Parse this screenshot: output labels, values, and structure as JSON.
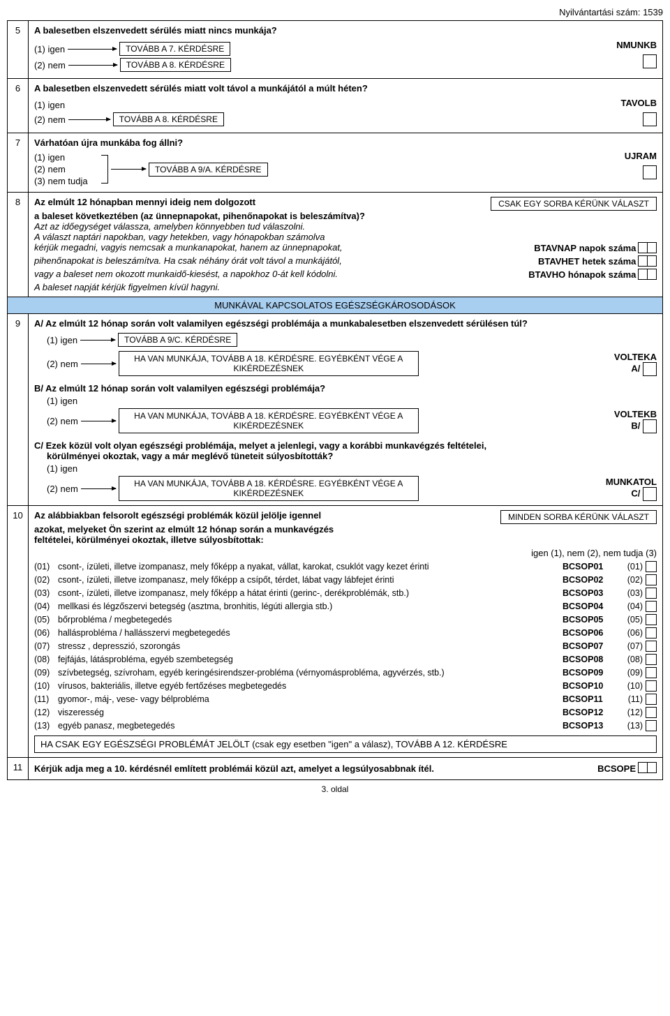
{
  "reg": "Nyilvántartási szám: 1539",
  "q5": {
    "num": "5",
    "title": "A balesetben elszenvedett sérülés miatt nincs munkája?",
    "opt1": "(1) igen",
    "opt2": "(2) nem",
    "skip1": "TOVÁBB A 7. KÉRDÉSRE",
    "skip2": "TOVÁBB A 8. KÉRDÉSRE",
    "code": "NMUNKB"
  },
  "q6": {
    "num": "6",
    "title": "A balesetben elszenvedett sérülés miatt volt távol a munkájától a múlt héten?",
    "opt1": "(1) igen",
    "opt2": "(2) nem",
    "skip2": "TOVÁBB A 8. KÉRDÉSRE",
    "code": "TAVOLB"
  },
  "q7": {
    "num": "7",
    "title": "Várhatóan újra munkába fog állni?",
    "opt1": "(1) igen",
    "opt2": "(2) nem",
    "opt3": "(3) nem tudja",
    "skip": "TOVÁBB A 9/A. KÉRDÉSRE",
    "code": "UJRAM"
  },
  "q8": {
    "num": "8",
    "l1": "Az elmúlt 12 hónapban mennyi ideig nem dolgozott",
    "notice": "CSAK EGY SORBA KÉRÜNK VÁLASZT",
    "l2": "a baleset következtében (az ünnepnapokat, pihenőnapokat is beleszámítva)?",
    "l3": "Azt az időegységet válassza, amelyben könnyebben tud válaszolni.",
    "l4": "A választ naptári napokban, vagy hetekben, vagy hónapokban számolva",
    "l5": "kérjük megadni, vagyis nemcsak a munkanapokat, hanem az ünnepnapokat,",
    "l6": "pihenőnapokat is beleszámítva.  Ha csak néhány órát  volt távol a munkájától,",
    "l7": " vagy a baleset nem okozott munkaidő-kiesést,  a napokhoz 0-át kell kódolni.",
    "l8": "A baleset napját kérjük figyelmen kívül hagyni.",
    "c1": "BTAVNAP",
    "u1": "napok száma",
    "c2": "BTAVHET",
    "u2": "hetek száma",
    "c3": "BTAVHO",
    "u3": "hónapok száma"
  },
  "band": "MUNKÁVAL KAPCSOLATOS EGÉSZSÉGKÁROSODÁSOK",
  "q9": {
    "num": "9",
    "a_prefix": "A/",
    "a_title": "Az elmúlt 12 hónap során volt valamilyen egészségi problémája a munkabalesetben elszenvedett sérülésen túl?",
    "opt1": "(1)  igen",
    "opt2": "(2)  nem",
    "skip1": "TOVÁBB A 9/C. KÉRDÉSRE",
    "skip2": "HA VAN MUNKÁJA, TOVÁBB A 18. KÉRDÉSRE. EGYÉBKÉNT VÉGE A KIKÉRDEZÉSNEK",
    "a_code": "VOLTEKA",
    "a_sub": "A/",
    "b_prefix": "B/",
    "b_title": "Az elmúlt 12 hónap során volt valamilyen egészségi problémája?",
    "b_code": "VOLTEKB",
    "b_sub": "B/",
    "c_prefix": "C/",
    "c_title_l1": "Ezek közül volt olyan egészségi problémája, melyet a jelenlegi, vagy a korábbi munkavégzés feltételei,",
    "c_title_l2": "körülményei okoztak, vagy a már meglévő tüneteit súlyosbították?",
    "c_code": "MUNKATOL",
    "c_sub": "C/"
  },
  "q10": {
    "num": "10",
    "l1": "Az alábbiakban felsorolt egészségi problémák közül jelölje igennel",
    "notice": "MINDEN SORBA KÉRÜNK VÁLASZT",
    "l2": "azokat, melyeket Ön szerint az elmúlt 12 hónap során a munkavégzés",
    "l3": "feltételei, körülményei okoztak, illetve súlyosbítottak:",
    "legend": "igen (1), nem (2), nem tudja (3)",
    "items": [
      {
        "n": "(01)",
        "t": "csont-, ízületi, illetve izompanasz, mely főképp a nyakat, vállat, karokat, csuklót vagy kezet érinti",
        "c": "BCSOP01",
        "r": "(01)"
      },
      {
        "n": "(02)",
        "t": "csont-, ízületi, illetve izompanasz, mely főképp a csípőt, térdet, lábat vagy lábfejet érinti",
        "c": "BCSOP02",
        "r": "(02)"
      },
      {
        "n": "(03)",
        "t": "csont-, ízületi, illetve izompanasz, mely főképp a hátat érinti (gerinc-, derékproblémák, stb.)",
        "c": "BCSOP03",
        "r": "(03)"
      },
      {
        "n": "(04)",
        "t": "mellkasi és légzőszervi betegség (asztma, bronhitis, légúti allergia stb.)",
        "c": "BCSOP04",
        "r": "(04)"
      },
      {
        "n": "(05)",
        "t": "bőrprobléma / megbetegedés",
        "c": "BCSOP05",
        "r": "(05)"
      },
      {
        "n": "(06)",
        "t": "hallásprobléma / hallásszervi megbetegedés",
        "c": "BCSOP06",
        "r": "(06)"
      },
      {
        "n": "(07)",
        "t": "stressz , depresszió, szorongás",
        "c": "BCSOP07",
        "r": "(07)"
      },
      {
        "n": "(08)",
        "t": "fejfájás, látásprobléma, egyéb szembetegség",
        "c": "BCSOP08",
        "r": "(08)"
      },
      {
        "n": "(09)",
        "t": "szívbetegség, szívroham, egyéb keringésirendszer-probléma (vérnyomásprobléma, agyvérzés, stb.)",
        "c": "BCSOP09",
        "r": "(09)"
      },
      {
        "n": "(10)",
        "t": "vírusos, bakteriális, illetve egyéb fertőzéses megbetegedés",
        "c": "BCSOP10",
        "r": "(10)"
      },
      {
        "n": "(11)",
        "t": "gyomor-, máj-, vese- vagy bélprobléma",
        "c": "BCSOP11",
        "r": "(11)"
      },
      {
        "n": "(12)",
        "t": "viszeresség",
        "c": "BCSOP12",
        "r": "(12)"
      },
      {
        "n": "(13)",
        "t": "egyéb panasz, megbetegedés",
        "c": "BCSOP13",
        "r": "(13)"
      }
    ],
    "footer": "HA CSAK EGY EGÉSZSÉGI PROBLÉMÁT JELÖLT  (csak egy esetben \"igen\" a válasz), TOVÁBB A 12. KÉRDÉSRE"
  },
  "q11": {
    "num": "11",
    "title": "Kérjük adja meg a 10. kérdésnél említett problémái közül azt, amelyet a legsúlyosabbnak ítél.",
    "code": "BCSOPE"
  },
  "page": "3. oldal"
}
